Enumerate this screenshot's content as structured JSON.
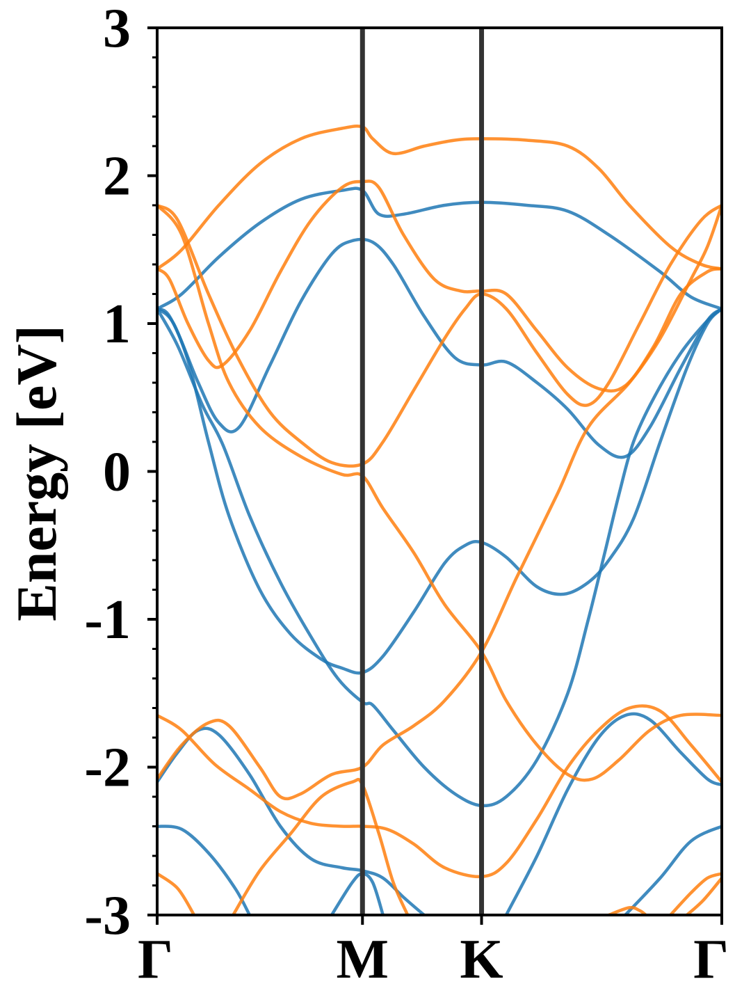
{
  "chart_data": {
    "type": "line",
    "title": "",
    "xlabel": "",
    "ylabel": "Energy [eV]",
    "ylim": [
      -3,
      3
    ],
    "xlim": [
      0,
      2.75
    ],
    "y_major_ticks": [
      -3,
      -2,
      -1,
      0,
      1,
      2,
      3
    ],
    "y_tick_labels": [
      "-3",
      "-2",
      "-1",
      "0",
      "1",
      "2",
      "3"
    ],
    "y_minor_step": 0.2,
    "high_symmetry_points": [
      {
        "label": "Γ",
        "x": 0
      },
      {
        "label": "M",
        "x": 1.0
      },
      {
        "label": "K",
        "x": 1.58
      },
      {
        "label": "Γ",
        "x": 2.75
      }
    ],
    "vertical_lines_at": [
      1.0,
      1.58
    ],
    "colors": {
      "blue": "#1f77b4",
      "orange": "#ff7f0e",
      "vline": "#333333"
    },
    "series": [
      {
        "color": "blue",
        "points": [
          [
            0,
            1.1
          ],
          [
            0.12,
            1.2
          ],
          [
            0.3,
            1.45
          ],
          [
            0.5,
            1.68
          ],
          [
            0.7,
            1.84
          ],
          [
            0.9,
            1.9
          ],
          [
            1.0,
            1.9
          ],
          [
            1.08,
            1.74
          ],
          [
            1.2,
            1.74
          ],
          [
            1.4,
            1.8
          ],
          [
            1.58,
            1.82
          ],
          [
            1.8,
            1.8
          ],
          [
            2.0,
            1.76
          ],
          [
            2.2,
            1.6
          ],
          [
            2.45,
            1.35
          ],
          [
            2.6,
            1.18
          ],
          [
            2.75,
            1.1
          ]
        ]
      },
      {
        "color": "blue",
        "points": [
          [
            0,
            1.1
          ],
          [
            0.08,
            1.0
          ],
          [
            0.2,
            0.6
          ],
          [
            0.3,
            0.33
          ],
          [
            0.4,
            0.3
          ],
          [
            0.55,
            0.72
          ],
          [
            0.7,
            1.15
          ],
          [
            0.85,
            1.47
          ],
          [
            0.95,
            1.56
          ],
          [
            1.05,
            1.55
          ],
          [
            1.15,
            1.4
          ],
          [
            1.3,
            1.05
          ],
          [
            1.45,
            0.77
          ],
          [
            1.58,
            0.72
          ],
          [
            1.7,
            0.74
          ],
          [
            1.85,
            0.6
          ],
          [
            2.0,
            0.42
          ],
          [
            2.15,
            0.18
          ],
          [
            2.28,
            0.1
          ],
          [
            2.4,
            0.3
          ],
          [
            2.55,
            0.7
          ],
          [
            2.68,
            1.02
          ],
          [
            2.75,
            1.1
          ]
        ]
      },
      {
        "color": "blue",
        "points": [
          [
            0,
            1.1
          ],
          [
            0.1,
            0.85
          ],
          [
            0.22,
            0.45
          ],
          [
            0.32,
            0.18
          ],
          [
            0.45,
            -0.3
          ],
          [
            0.6,
            -0.75
          ],
          [
            0.75,
            -1.12
          ],
          [
            0.88,
            -1.4
          ],
          [
            1.0,
            -1.56
          ],
          [
            1.05,
            -1.58
          ],
          [
            1.15,
            -1.75
          ],
          [
            1.3,
            -2.0
          ],
          [
            1.45,
            -2.18
          ],
          [
            1.58,
            -2.26
          ],
          [
            1.7,
            -2.2
          ],
          [
            1.85,
            -1.95
          ],
          [
            2.0,
            -1.5
          ],
          [
            2.1,
            -1.0
          ],
          [
            2.18,
            -0.55
          ],
          [
            2.25,
            -0.15
          ],
          [
            2.32,
            0.2
          ],
          [
            2.42,
            0.5
          ],
          [
            2.55,
            0.8
          ],
          [
            2.68,
            1.02
          ],
          [
            2.75,
            1.1
          ]
        ]
      },
      {
        "color": "blue",
        "points": [
          [
            0,
            1.1
          ],
          [
            0.06,
            1.05
          ],
          [
            0.15,
            0.75
          ],
          [
            0.25,
            0.2
          ],
          [
            0.35,
            -0.3
          ],
          [
            0.5,
            -0.8
          ],
          [
            0.65,
            -1.1
          ],
          [
            0.8,
            -1.27
          ],
          [
            0.9,
            -1.33
          ],
          [
            1.0,
            -1.36
          ],
          [
            1.1,
            -1.25
          ],
          [
            1.25,
            -0.95
          ],
          [
            1.4,
            -0.62
          ],
          [
            1.5,
            -0.5
          ],
          [
            1.58,
            -0.48
          ],
          [
            1.7,
            -0.58
          ],
          [
            1.85,
            -0.78
          ],
          [
            1.98,
            -0.83
          ],
          [
            2.1,
            -0.75
          ],
          [
            2.2,
            -0.6
          ],
          [
            2.32,
            -0.32
          ],
          [
            2.45,
            0.2
          ],
          [
            2.58,
            0.7
          ],
          [
            2.68,
            1.0
          ],
          [
            2.75,
            1.1
          ]
        ]
      },
      {
        "color": "blue",
        "points": [
          [
            0,
            -2.1
          ],
          [
            0.1,
            -1.9
          ],
          [
            0.2,
            -1.75
          ],
          [
            0.3,
            -1.78
          ],
          [
            0.45,
            -2.05
          ],
          [
            0.6,
            -2.4
          ],
          [
            0.75,
            -2.62
          ],
          [
            0.9,
            -2.68
          ],
          [
            1.0,
            -2.7
          ],
          [
            1.1,
            -2.75
          ],
          [
            1.2,
            -2.88
          ],
          [
            1.3,
            -3.0
          ]
        ]
      },
      {
        "color": "blue",
        "points": [
          [
            0,
            -2.4
          ],
          [
            0.12,
            -2.42
          ],
          [
            0.25,
            -2.58
          ],
          [
            0.38,
            -2.82
          ],
          [
            0.45,
            -3.0
          ]
        ]
      },
      {
        "color": "blue",
        "points": [
          [
            0.85,
            -3.0
          ],
          [
            0.95,
            -2.78
          ],
          [
            1.0,
            -2.72
          ],
          [
            1.05,
            -2.78
          ],
          [
            1.1,
            -3.0
          ]
        ]
      },
      {
        "color": "blue",
        "points": [
          [
            1.7,
            -3.0
          ],
          [
            1.85,
            -2.6
          ],
          [
            2.0,
            -2.15
          ],
          [
            2.15,
            -1.8
          ],
          [
            2.28,
            -1.65
          ],
          [
            2.4,
            -1.68
          ],
          [
            2.55,
            -1.9
          ],
          [
            2.68,
            -2.08
          ],
          [
            2.75,
            -2.12
          ]
        ]
      },
      {
        "color": "blue",
        "points": [
          [
            2.28,
            -3.0
          ],
          [
            2.45,
            -2.75
          ],
          [
            2.6,
            -2.5
          ],
          [
            2.75,
            -2.4
          ]
        ]
      },
      {
        "color": "orange",
        "points": [
          [
            0,
            1.37
          ],
          [
            0.12,
            1.5
          ],
          [
            0.3,
            1.8
          ],
          [
            0.5,
            2.08
          ],
          [
            0.7,
            2.25
          ],
          [
            0.9,
            2.32
          ],
          [
            1.0,
            2.33
          ],
          [
            1.05,
            2.25
          ],
          [
            1.15,
            2.15
          ],
          [
            1.3,
            2.2
          ],
          [
            1.45,
            2.24
          ],
          [
            1.58,
            2.25
          ],
          [
            1.8,
            2.24
          ],
          [
            2.0,
            2.2
          ],
          [
            2.15,
            2.05
          ],
          [
            2.3,
            1.8
          ],
          [
            2.5,
            1.52
          ],
          [
            2.65,
            1.4
          ],
          [
            2.75,
            1.37
          ]
        ]
      },
      {
        "color": "orange",
        "points": [
          [
            0,
            1.37
          ],
          [
            0.06,
            1.3
          ],
          [
            0.15,
            1.0
          ],
          [
            0.25,
            0.75
          ],
          [
            0.32,
            0.72
          ],
          [
            0.45,
            0.95
          ],
          [
            0.6,
            1.35
          ],
          [
            0.75,
            1.7
          ],
          [
            0.9,
            1.92
          ],
          [
            1.0,
            1.96
          ],
          [
            1.08,
            1.92
          ],
          [
            1.2,
            1.6
          ],
          [
            1.35,
            1.3
          ],
          [
            1.48,
            1.22
          ],
          [
            1.58,
            1.22
          ],
          [
            1.7,
            1.2
          ],
          [
            1.85,
            0.95
          ],
          [
            2.0,
            0.7
          ],
          [
            2.15,
            0.56
          ],
          [
            2.28,
            0.58
          ],
          [
            2.42,
            0.85
          ],
          [
            2.55,
            1.2
          ],
          [
            2.68,
            1.35
          ],
          [
            2.75,
            1.37
          ]
        ]
      },
      {
        "color": "orange",
        "points": [
          [
            0,
            1.8
          ],
          [
            0.1,
            1.7
          ],
          [
            0.25,
            1.2
          ],
          [
            0.4,
            0.75
          ],
          [
            0.55,
            0.4
          ],
          [
            0.7,
            0.2
          ],
          [
            0.85,
            0.06
          ],
          [
            1.0,
            0.05
          ],
          [
            1.1,
            0.2
          ],
          [
            1.25,
            0.55
          ],
          [
            1.4,
            0.9
          ],
          [
            1.5,
            1.1
          ],
          [
            1.58,
            1.2
          ],
          [
            1.7,
            1.1
          ],
          [
            1.85,
            0.8
          ],
          [
            2.0,
            0.52
          ],
          [
            2.1,
            0.45
          ],
          [
            2.2,
            0.6
          ],
          [
            2.35,
            1.0
          ],
          [
            2.5,
            1.4
          ],
          [
            2.65,
            1.7
          ],
          [
            2.75,
            1.8
          ]
        ]
      },
      {
        "color": "orange",
        "points": [
          [
            0,
            1.8
          ],
          [
            0.12,
            1.6
          ],
          [
            0.25,
            1.0
          ],
          [
            0.35,
            0.6
          ],
          [
            0.5,
            0.3
          ],
          [
            0.7,
            0.1
          ],
          [
            0.9,
            -0.02
          ],
          [
            1.0,
            -0.03
          ],
          [
            1.1,
            -0.25
          ],
          [
            1.25,
            -0.55
          ],
          [
            1.4,
            -0.9
          ],
          [
            1.58,
            -1.22
          ],
          [
            1.7,
            -1.55
          ],
          [
            1.85,
            -1.85
          ],
          [
            2.0,
            -2.05
          ],
          [
            2.12,
            -2.08
          ],
          [
            2.25,
            -1.95
          ],
          [
            2.4,
            -1.75
          ],
          [
            2.55,
            -1.65
          ],
          [
            2.75,
            -1.65
          ]
        ]
      },
      {
        "color": "orange",
        "points": [
          [
            0,
            -1.65
          ],
          [
            0.12,
            -1.75
          ],
          [
            0.28,
            -1.98
          ],
          [
            0.45,
            -2.15
          ],
          [
            0.6,
            -2.3
          ],
          [
            0.75,
            -2.38
          ],
          [
            0.9,
            -2.4
          ],
          [
            1.0,
            -2.4
          ],
          [
            1.12,
            -2.42
          ],
          [
            1.25,
            -2.52
          ],
          [
            1.4,
            -2.68
          ],
          [
            1.58,
            -2.74
          ],
          [
            1.7,
            -2.65
          ],
          [
            1.85,
            -2.35
          ],
          [
            2.0,
            -2.0
          ],
          [
            2.15,
            -1.75
          ],
          [
            2.3,
            -1.6
          ],
          [
            2.45,
            -1.62
          ],
          [
            2.6,
            -1.85
          ],
          [
            2.75,
            -2.1
          ]
        ]
      },
      {
        "color": "orange",
        "points": [
          [
            0,
            -2.08
          ],
          [
            0.12,
            -1.85
          ],
          [
            0.25,
            -1.7
          ],
          [
            0.35,
            -1.72
          ],
          [
            0.5,
            -2.0
          ],
          [
            0.6,
            -2.2
          ],
          [
            0.7,
            -2.18
          ],
          [
            0.85,
            -2.05
          ],
          [
            1.0,
            -2.0
          ],
          [
            1.1,
            -1.85
          ],
          [
            1.25,
            -1.72
          ],
          [
            1.4,
            -1.55
          ],
          [
            1.58,
            -1.22
          ],
          [
            1.75,
            -0.72
          ],
          [
            1.95,
            -0.15
          ],
          [
            2.1,
            0.3
          ],
          [
            2.3,
            0.6
          ],
          [
            2.45,
            0.9
          ],
          [
            2.6,
            1.3
          ],
          [
            2.68,
            1.52
          ],
          [
            2.75,
            1.8
          ]
        ]
      },
      {
        "color": "orange",
        "points": [
          [
            0,
            -2.72
          ],
          [
            0.1,
            -2.82
          ],
          [
            0.18,
            -3.0
          ]
        ]
      },
      {
        "color": "orange",
        "points": [
          [
            0.37,
            -3.0
          ],
          [
            0.5,
            -2.7
          ],
          [
            0.65,
            -2.45
          ],
          [
            0.8,
            -2.2
          ],
          [
            0.95,
            -2.1
          ],
          [
            1.0,
            -2.12
          ],
          [
            1.08,
            -2.45
          ],
          [
            1.15,
            -2.78
          ],
          [
            1.22,
            -3.0
          ]
        ]
      },
      {
        "color": "orange",
        "points": [
          [
            2.2,
            -3.0
          ],
          [
            2.3,
            -2.95
          ],
          [
            2.35,
            -2.97
          ],
          [
            2.38,
            -3.0
          ]
        ]
      },
      {
        "color": "orange",
        "points": [
          [
            2.5,
            -3.0
          ],
          [
            2.6,
            -2.85
          ],
          [
            2.68,
            -2.75
          ],
          [
            2.75,
            -2.72
          ]
        ]
      },
      {
        "color": "orange",
        "points": [
          [
            2.58,
            -3.0
          ],
          [
            2.66,
            -2.9
          ],
          [
            2.75,
            -2.75
          ]
        ]
      }
    ]
  }
}
